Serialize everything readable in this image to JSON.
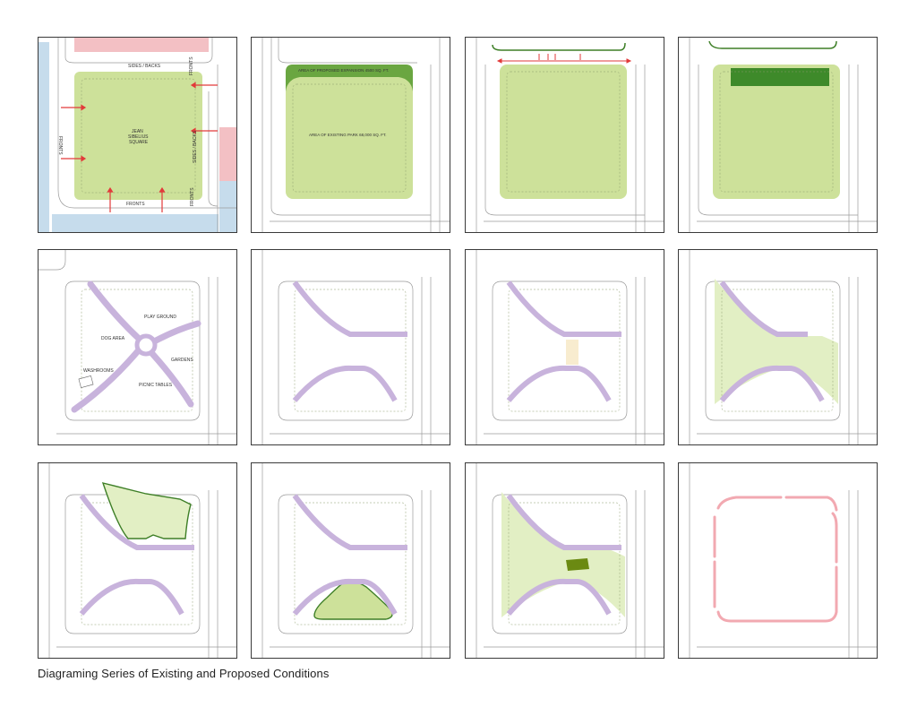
{
  "caption": "Diagraming Series of Existing and Proposed Conditions",
  "panels": [
    {
      "id": 1,
      "labels": {
        "sides_backs_top": "SIDES / BACKS",
        "fronts_left": "FRONTS",
        "park_name": "JEAN SIBELIUS SQUARE",
        "fronts_top_right": "FRONTS",
        "sides_backs_right": "SIDES / BACKS",
        "fronts_bottom": "FRONTS",
        "fronts_right_bottom": "FRONTS"
      }
    },
    {
      "id": 2,
      "labels": {
        "expansion": "AREA OF PROPOSED EXPANSION 4500 SQ. FT.",
        "existing": "AREA OF EXISTING PARK 68,000 SQ. FT."
      }
    },
    {
      "id": 3
    },
    {
      "id": 4
    },
    {
      "id": 5,
      "labels": {
        "playground": "PLAY GROUND",
        "dog_area": "DOG AREA",
        "gardens": "GARDENS",
        "washrooms": "WASHROOMS",
        "picnic": "PICNIC TABLES"
      }
    },
    {
      "id": 6
    },
    {
      "id": 7
    },
    {
      "id": 8
    },
    {
      "id": 9
    },
    {
      "id": 10
    },
    {
      "id": 11
    },
    {
      "id": 12
    }
  ],
  "colors": {
    "park_green": "#cde19a",
    "park_green_light": "#e2efc4",
    "expansion_green": "#6aa641",
    "dark_green": "#3e7f27",
    "path_purple": "#c8b3dc",
    "arrow_red": "#e23a3a",
    "pink_lot": "#f3c0c4",
    "blue_lot": "#c6dcec",
    "pink_path": "#f2a9b1",
    "outline_gray": "#9a9a9a"
  }
}
